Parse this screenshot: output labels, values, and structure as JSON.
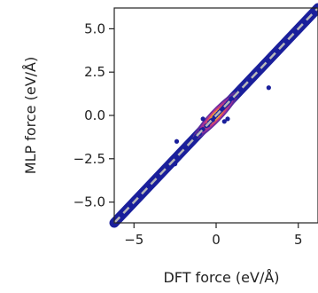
{
  "chart_data": {
    "type": "scatter",
    "title": "",
    "xlabel": "DFT force (eV/Å)",
    "ylabel": "MLP force (eV/Å)",
    "xlim": [
      -6.2,
      6.2
    ],
    "ylim": [
      -6.2,
      6.2
    ],
    "xticks": [
      -5,
      0,
      5
    ],
    "xtick_labels": [
      "−5",
      "0",
      "5"
    ],
    "yticks": [
      5.0,
      2.5,
      0.0,
      -2.5,
      -5.0
    ],
    "ytick_labels": [
      "5.0",
      "2.5",
      "0.0",
      "−2.5",
      "−5.0"
    ],
    "grid": false,
    "legend": "none",
    "reference_line": {
      "from": [
        -6.2,
        -6.2
      ],
      "to": [
        6.2,
        6.2
      ],
      "style": "dashed",
      "color": "#b8b8b8"
    },
    "density_colormap": [
      "#1a1f9b",
      "#5a2b9c",
      "#a2309a",
      "#d3456f",
      "#f58b3a",
      "#f6d346"
    ],
    "density_peak": [
      0.0,
      0.0
    ],
    "points": [
      [
        -6.0,
        -6.0
      ],
      [
        -5.6,
        -5.55
      ],
      [
        -5.3,
        -5.35
      ],
      [
        -5.0,
        -5.0
      ],
      [
        -4.8,
        -4.75
      ],
      [
        -4.5,
        -4.5
      ],
      [
        -4.2,
        -4.25
      ],
      [
        -4.0,
        -3.9
      ],
      [
        -3.7,
        -3.75
      ],
      [
        -3.5,
        -3.5
      ],
      [
        -3.3,
        -3.35
      ],
      [
        -3.1,
        -3.0
      ],
      [
        -2.9,
        -2.9
      ],
      [
        -2.7,
        -2.75
      ],
      [
        -2.5,
        -2.45
      ],
      [
        -2.4,
        -1.5
      ],
      [
        -2.3,
        -2.1
      ],
      [
        -2.2,
        -2.25
      ],
      [
        -2.0,
        -2.0
      ],
      [
        -1.9,
        -1.85
      ],
      [
        -1.8,
        -1.8
      ],
      [
        -1.6,
        -1.6
      ],
      [
        -1.5,
        -1.5
      ],
      [
        -1.3,
        -1.35
      ],
      [
        -1.2,
        -1.2
      ],
      [
        -1.0,
        -1.05
      ],
      [
        -0.9,
        -0.85
      ],
      [
        -0.8,
        -0.8
      ],
      [
        -0.6,
        -0.6
      ],
      [
        -0.5,
        -0.55
      ],
      [
        -0.4,
        -0.4
      ],
      [
        -0.3,
        -0.3
      ],
      [
        -0.2,
        -0.25
      ],
      [
        -0.1,
        -0.1
      ],
      [
        0.0,
        0.0
      ],
      [
        0.1,
        0.1
      ],
      [
        0.2,
        0.2
      ],
      [
        0.3,
        0.3
      ],
      [
        0.4,
        0.4
      ],
      [
        0.5,
        0.5
      ],
      [
        0.6,
        0.6
      ],
      [
        0.7,
        0.7
      ],
      [
        0.8,
        0.8
      ],
      [
        0.9,
        0.95
      ],
      [
        1.0,
        1.0
      ],
      [
        1.2,
        1.15
      ],
      [
        1.3,
        1.3
      ],
      [
        1.5,
        1.5
      ],
      [
        1.7,
        1.7
      ],
      [
        1.9,
        1.9
      ],
      [
        2.1,
        2.1
      ],
      [
        2.3,
        2.3
      ],
      [
        2.5,
        2.5
      ],
      [
        2.7,
        2.7
      ],
      [
        2.9,
        2.9
      ],
      [
        3.1,
        3.1
      ],
      [
        3.2,
        1.6
      ],
      [
        3.4,
        3.4
      ],
      [
        3.7,
        3.7
      ],
      [
        4.0,
        4.0
      ],
      [
        4.3,
        4.3
      ],
      [
        4.6,
        4.6
      ],
      [
        5.0,
        5.0
      ],
      [
        5.4,
        5.4
      ],
      [
        5.8,
        5.8
      ],
      [
        6.1,
        6.1
      ],
      [
        -2.5,
        -2.8
      ],
      [
        0.5,
        -0.35
      ],
      [
        0.7,
        -0.2
      ],
      [
        -0.8,
        -0.2
      ]
    ]
  }
}
